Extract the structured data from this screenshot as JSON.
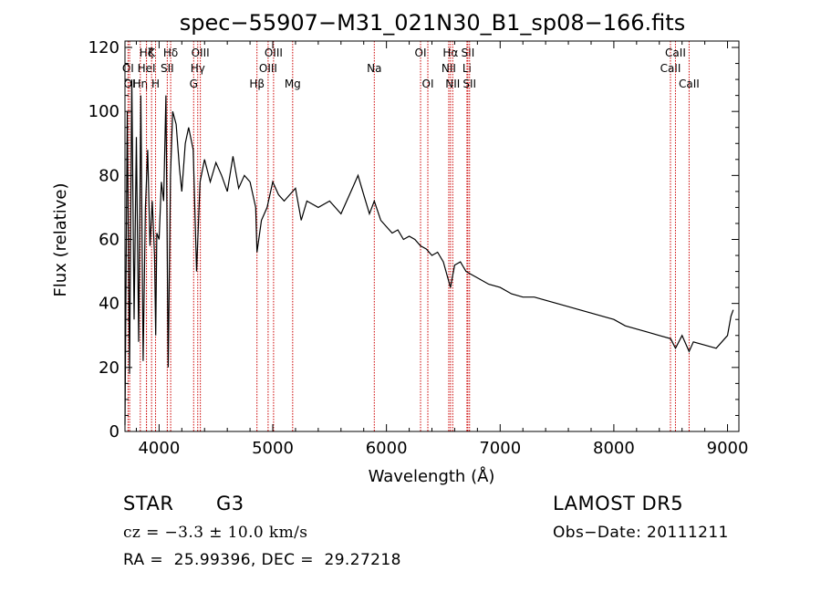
{
  "chart_data": {
    "type": "line",
    "title": "spec−55907−M31_021N30_B1_sp08−166.fits",
    "xlabel": "Wavelength (Å)",
    "ylabel": "Flux (relative)",
    "xlim": [
      3700,
      9100
    ],
    "ylim": [
      0,
      122
    ],
    "x_ticks": [
      4000,
      5000,
      6000,
      7000,
      8000,
      9000
    ],
    "y_ticks": [
      0,
      20,
      40,
      60,
      80,
      100,
      120
    ],
    "grid": false,
    "line_color": "#000000",
    "marker_color": "#cc0000",
    "series": [
      {
        "x": [
          3700,
          3720,
          3740,
          3760,
          3780,
          3800,
          3820,
          3840,
          3860,
          3880,
          3900,
          3920,
          3940,
          3960,
          3970,
          3980,
          4000,
          4020,
          4040,
          4060,
          4080,
          4100,
          4120,
          4150,
          4180,
          4200,
          4230,
          4260,
          4300,
          4330,
          4360,
          4400,
          4450,
          4500,
          4550,
          4600,
          4650,
          4700,
          4750,
          4800,
          4850,
          4861,
          4900,
          4950,
          5000,
          5050,
          5100,
          5150,
          5200,
          5250,
          5300,
          5400,
          5500,
          5600,
          5700,
          5750,
          5800,
          5850,
          5893,
          5950,
          6000,
          6050,
          6100,
          6150,
          6200,
          6250,
          6300,
          6350,
          6400,
          6450,
          6500,
          6563,
          6600,
          6650,
          6700,
          6750,
          6800,
          6900,
          7000,
          7100,
          7200,
          7300,
          7400,
          7500,
          7600,
          7700,
          7800,
          7900,
          8000,
          8100,
          8200,
          8300,
          8400,
          8500,
          8542,
          8600,
          8662,
          8700,
          8800,
          8900,
          8950,
          9000,
          9030,
          9050
        ],
        "values": [
          2,
          100,
          18,
          110,
          35,
          92,
          28,
          105,
          22,
          70,
          88,
          58,
          72,
          55,
          30,
          62,
          60,
          78,
          72,
          105,
          20,
          80,
          100,
          96,
          82,
          75,
          90,
          95,
          88,
          50,
          78,
          85,
          78,
          84,
          80,
          75,
          86,
          76,
          80,
          78,
          70,
          56,
          66,
          70,
          78,
          74,
          72,
          74,
          76,
          66,
          72,
          70,
          72,
          68,
          76,
          80,
          74,
          68,
          72,
          66,
          64,
          62,
          63,
          60,
          61,
          60,
          58,
          57,
          55,
          56,
          53,
          45,
          52,
          53,
          50,
          49,
          48,
          46,
          45,
          43,
          42,
          42,
          41,
          40,
          39,
          38,
          37,
          36,
          35,
          33,
          32,
          31,
          30,
          29,
          26,
          30,
          25,
          28,
          27,
          26,
          28,
          30,
          36,
          38
        ]
      }
    ],
    "line_markers": [
      {
        "label": "OI",
        "x": 3727,
        "row": 2
      },
      {
        "label": "OI",
        "x": 3741,
        "row": 3
      },
      {
        "label": "Hη",
        "x": 3835,
        "row": 3
      },
      {
        "label": "Hζ",
        "x": 3889,
        "row": 1
      },
      {
        "label": "HeI",
        "x": 3889,
        "row": 2
      },
      {
        "label": "K",
        "x": 3934,
        "row": 1
      },
      {
        "label": "H",
        "x": 3969,
        "row": 3
      },
      {
        "label": "SII",
        "x": 4072,
        "row": 2
      },
      {
        "label": "Hδ",
        "x": 4102,
        "row": 1
      },
      {
        "label": "G",
        "x": 4304,
        "row": 3
      },
      {
        "label": "Hγ",
        "x": 4340,
        "row": 2
      },
      {
        "label": "OIII",
        "x": 4363,
        "row": 1
      },
      {
        "label": "Hβ",
        "x": 4861,
        "row": 3
      },
      {
        "label": "OIII",
        "x": 4959,
        "row": 2
      },
      {
        "label": "OIII",
        "x": 5007,
        "row": 1
      },
      {
        "label": "Mg",
        "x": 5175,
        "row": 3
      },
      {
        "label": "Na",
        "x": 5893,
        "row": 2
      },
      {
        "label": "OI",
        "x": 6300,
        "row": 1
      },
      {
        "label": "OI",
        "x": 6364,
        "row": 3
      },
      {
        "label": "NII",
        "x": 6548,
        "row": 2
      },
      {
        "label": "Hα",
        "x": 6563,
        "row": 1
      },
      {
        "label": "NII",
        "x": 6583,
        "row": 3
      },
      {
        "label": "Li",
        "x": 6708,
        "row": 2
      },
      {
        "label": "SII",
        "x": 6716,
        "row": 1
      },
      {
        "label": "SII",
        "x": 6731,
        "row": 3
      },
      {
        "label": "CaII",
        "x": 8498,
        "row": 2
      },
      {
        "label": "CaII",
        "x": 8542,
        "row": 1
      },
      {
        "label": "CaII",
        "x": 8662,
        "row": 3
      }
    ]
  },
  "info": {
    "object_class": "STAR",
    "subclass": "G3",
    "survey": "LAMOST DR5",
    "redshift_line": "cz = −3.3 ± 10.0 km/s",
    "obs_date": "Obs−Date: 20111211",
    "coords": "RA =  25.99396, DEC =  29.27218"
  }
}
